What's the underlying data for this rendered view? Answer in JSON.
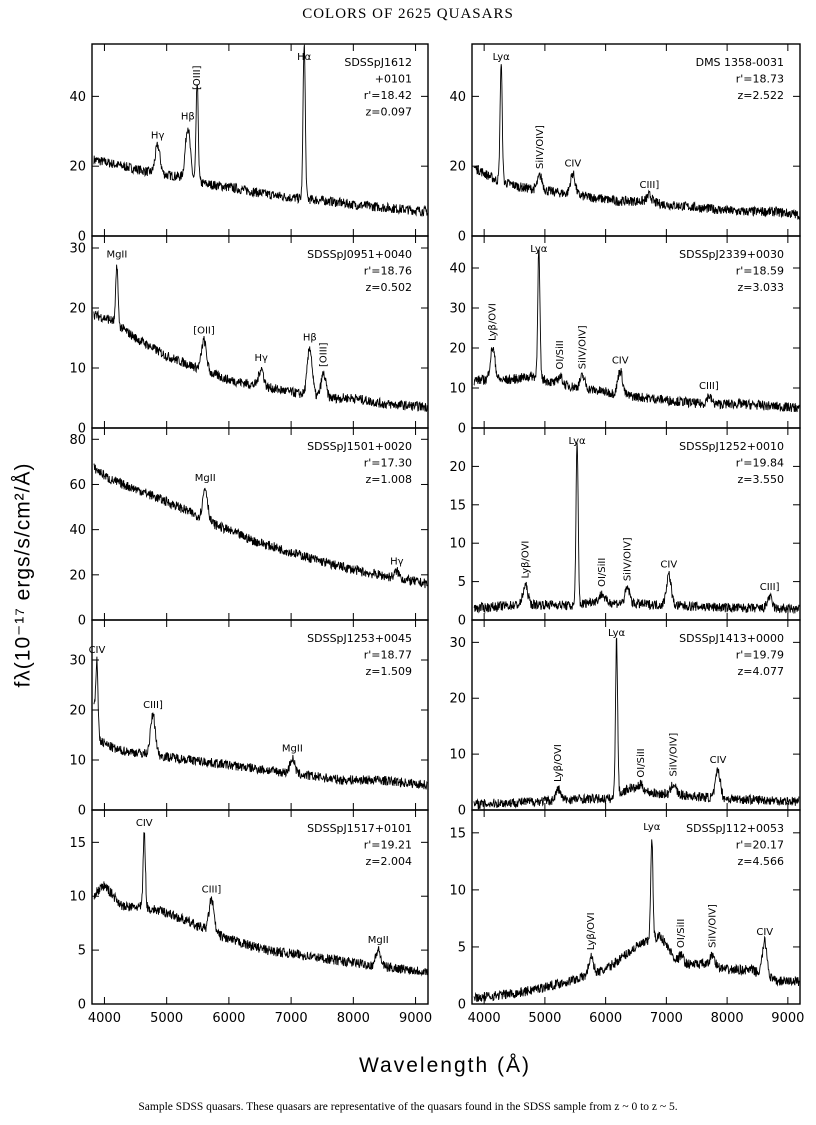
{
  "title": "COLORS OF 2625 QUASARS",
  "caption": "Sample SDSS quasars. These quasars are representative of the quasars found in the SDSS sample from z ~ 0 to z ~ 5.",
  "ylabel": "fλ(10⁻¹⁷ ergs/s/cm²/Å)",
  "xlabel": "Wavelength (Å)",
  "chart_data": [
    {
      "type": "line",
      "name": "SDSSpJ1612+0101",
      "info": [
        "SDSSpJ1612",
        "+0101",
        "r'=18.42",
        "z=0.097"
      ],
      "xlim": [
        3800,
        9200
      ],
      "ylim": [
        0,
        55
      ],
      "yticks": [
        0,
        20,
        40
      ],
      "xticks": [
        4000,
        5000,
        6000,
        7000,
        8000,
        9000
      ],
      "x": [
        3800,
        4300,
        4800,
        5200,
        5600,
        6000,
        6600,
        7000,
        7600,
        8000,
        8600,
        9200
      ],
      "y": [
        22,
        20,
        18,
        17,
        15,
        14,
        12,
        11,
        10,
        9,
        8,
        7
      ],
      "lines": [
        {
          "label": "Hγ",
          "x": 4855,
          "h": 8
        },
        {
          "label": "Hβ",
          "x": 5340,
          "h": 15
        },
        {
          "label": "[OIII]",
          "x": 5490,
          "h": 28
        },
        {
          "label": "Hα",
          "x": 7210,
          "h": 45
        }
      ]
    },
    {
      "type": "line",
      "name": "DMS 1358-0031",
      "info": [
        "DMS 1358-0031",
        "r'=18.73",
        "z=2.522"
      ],
      "xlim": [
        3800,
        9200
      ],
      "ylim": [
        0,
        55
      ],
      "yticks": [
        0,
        20,
        40
      ],
      "xticks": [
        4000,
        5000,
        6000,
        7000,
        8000,
        9000
      ],
      "x": [
        3800,
        4000,
        4200,
        4600,
        5000,
        5400,
        5800,
        6200,
        6600,
        7000,
        7600,
        8200,
        8800,
        9200
      ],
      "y": [
        20,
        18,
        16,
        14,
        13,
        12,
        11,
        10,
        10,
        9,
        8,
        7,
        7,
        6
      ],
      "lines": [
        {
          "label": "Lyα",
          "x": 4280,
          "h": 34
        },
        {
          "label": "SiIV/OIV]",
          "x": 4920,
          "h": 4
        },
        {
          "label": "CIV",
          "x": 5460,
          "h": 6
        },
        {
          "label": "CIII]",
          "x": 6720,
          "h": 2
        }
      ]
    },
    {
      "type": "line",
      "name": "SDSSpJ0951+0040",
      "info": [
        "SDSSpJ0951+0040",
        "r'=18.76",
        "z=0.502"
      ],
      "xlim": [
        3800,
        9200
      ],
      "ylim": [
        0,
        32
      ],
      "yticks": [
        0,
        10,
        20,
        30
      ],
      "xticks": [
        4000,
        5000,
        6000,
        7000,
        8000,
        9000
      ],
      "x": [
        3800,
        4100,
        4500,
        5000,
        5500,
        6000,
        6500,
        7000,
        7500,
        8000,
        8500,
        9200
      ],
      "y": [
        19,
        18,
        15,
        12,
        10,
        8,
        7,
        6,
        5,
        5,
        4,
        3.5
      ],
      "lines": [
        {
          "label": "MgII",
          "x": 4200,
          "h": 10
        },
        {
          "label": "[OII]",
          "x": 5600,
          "h": 5
        },
        {
          "label": "Hγ",
          "x": 6520,
          "h": 3
        },
        {
          "label": "Hβ",
          "x": 7300,
          "h": 8
        },
        {
          "label": "[OIII]",
          "x": 7520,
          "h": 4
        }
      ]
    },
    {
      "type": "line",
      "name": "SDSSpJ2339+0030",
      "info": [
        "SDSSpJ2339+0030",
        "r'=18.59",
        "z=3.033"
      ],
      "xlim": [
        3800,
        9200
      ],
      "ylim": [
        0,
        48
      ],
      "yticks": [
        0,
        10,
        20,
        30,
        40
      ],
      "xticks": [
        4000,
        5000,
        6000,
        7000,
        8000,
        9000
      ],
      "x": [
        3800,
        4400,
        4800,
        5200,
        5600,
        6000,
        6400,
        7000,
        7600,
        8200,
        9200
      ],
      "y": [
        12,
        12,
        13,
        11,
        10,
        9,
        8,
        7,
        6,
        6,
        5
      ],
      "lines": [
        {
          "label": "Lyβ/OVI",
          "x": 4140,
          "h": 8
        },
        {
          "label": "Lyα",
          "x": 4900,
          "h": 32
        },
        {
          "label": "OI/SiII",
          "x": 5250,
          "h": 2
        },
        {
          "label": "SiIV/OIV]",
          "x": 5620,
          "h": 3
        },
        {
          "label": "CIV",
          "x": 6240,
          "h": 6
        },
        {
          "label": "CIII]",
          "x": 7700,
          "h": 2
        }
      ]
    },
    {
      "type": "line",
      "name": "SDSSpJ1501+0020",
      "info": [
        "SDSSpJ1501+0020",
        "r'=17.30",
        "z=1.008"
      ],
      "xlim": [
        3800,
        9200
      ],
      "ylim": [
        0,
        85
      ],
      "yticks": [
        0,
        20,
        40,
        60,
        80
      ],
      "xticks": [
        4000,
        5000,
        6000,
        7000,
        8000,
        9000
      ],
      "x": [
        3800,
        4100,
        4600,
        5200,
        5800,
        6400,
        7000,
        7600,
        8200,
        8800,
        9200
      ],
      "y": [
        68,
        62,
        57,
        50,
        42,
        35,
        30,
        25,
        21,
        18,
        16
      ],
      "lines": [
        {
          "label": "MgII",
          "x": 5620,
          "h": 14
        },
        {
          "label": "Hγ",
          "x": 8700,
          "h": 3
        }
      ]
    },
    {
      "type": "line",
      "name": "SDSSpJ1252+0010",
      "info": [
        "SDSSpJ1252+0010",
        "r'=19.84",
        "z=3.550"
      ],
      "xlim": [
        3800,
        9200
      ],
      "ylim": [
        0,
        25
      ],
      "yticks": [
        0,
        5,
        10,
        15,
        20
      ],
      "xticks": [
        4000,
        5000,
        6000,
        7000,
        8000,
        9000
      ],
      "x": [
        3800,
        4600,
        5200,
        5500,
        5800,
        6200,
        6800,
        7400,
        8000,
        8600,
        9200
      ],
      "y": [
        1.5,
        2,
        2,
        1.8,
        2.5,
        2.2,
        2,
        1.8,
        1.6,
        1.5,
        1.4
      ],
      "lines": [
        {
          "label": "Lyβ/OVI",
          "x": 4680,
          "h": 2.5
        },
        {
          "label": "Lyα",
          "x": 5530,
          "h": 21
        },
        {
          "label": "OI/SiII",
          "x": 5940,
          "h": 1
        },
        {
          "label": "SiIV/OIV]",
          "x": 6360,
          "h": 2
        },
        {
          "label": "CIV",
          "x": 7040,
          "h": 4
        },
        {
          "label": "CIII]",
          "x": 8700,
          "h": 1.5
        }
      ]
    },
    {
      "type": "line",
      "name": "SDSSpJ1253+0045",
      "info": [
        "SDSSpJ1253+0045",
        "r'=18.77",
        "z=1.509"
      ],
      "xlim": [
        3800,
        9200
      ],
      "ylim": [
        0,
        38
      ],
      "yticks": [
        0,
        10,
        20,
        30
      ],
      "xticks": [
        4000,
        5000,
        6000,
        7000,
        8000,
        9000
      ],
      "x": [
        3800,
        3900,
        4200,
        4800,
        5400,
        6000,
        6600,
        7200,
        7800,
        8400,
        9200
      ],
      "y": [
        24,
        14,
        12,
        11,
        10,
        9,
        8,
        7,
        6,
        6,
        5
      ],
      "lines": [
        {
          "label": "CIV",
          "x": 3880,
          "h": 14
        },
        {
          "label": "CIII]",
          "x": 4780,
          "h": 8
        },
        {
          "label": "MgII",
          "x": 7020,
          "h": 3
        }
      ]
    },
    {
      "type": "line",
      "name": "SDSSpJ1413+0000",
      "info": [
        "SDSSpJ1413+0000",
        "r'=19.79",
        "z=4.077"
      ],
      "xlim": [
        3800,
        9200
      ],
      "ylim": [
        0,
        34
      ],
      "yticks": [
        0,
        10,
        20,
        30
      ],
      "xticks": [
        4000,
        5000,
        6000,
        7000,
        8000,
        9000
      ],
      "x": [
        3800,
        4800,
        5600,
        6100,
        6400,
        6800,
        7400,
        8000,
        8600,
        9200
      ],
      "y": [
        1,
        1.5,
        2,
        2,
        4,
        3,
        2.5,
        2,
        1.8,
        1.5
      ],
      "lines": [
        {
          "label": "Lyβ/OVI",
          "x": 5220,
          "h": 2
        },
        {
          "label": "Lyα",
          "x": 6180,
          "h": 28
        },
        {
          "label": "OI/SiII",
          "x": 6580,
          "h": 1
        },
        {
          "label": "SiIV/OIV]",
          "x": 7120,
          "h": 2
        },
        {
          "label": "CIV",
          "x": 7850,
          "h": 5
        }
      ]
    },
    {
      "type": "line",
      "name": "SDSSpJ1517+0101",
      "info": [
        "SDSSpJ1517+0101",
        "r'=19.21",
        "z=2.004"
      ],
      "xlim": [
        3800,
        9200
      ],
      "ylim": [
        0,
        18
      ],
      "yticks": [
        0,
        5,
        10,
        15
      ],
      "xticks": [
        4000,
        5000,
        6000,
        7000,
        8000,
        9000
      ],
      "x": [
        3800,
        4000,
        4300,
        4600,
        5000,
        5400,
        6000,
        6600,
        7200,
        7800,
        8400,
        9200
      ],
      "y": [
        10,
        11,
        9,
        9,
        8.5,
        7.5,
        6,
        5,
        4.5,
        4,
        3.5,
        3
      ],
      "lines": [
        {
          "label": "CIV",
          "x": 4640,
          "h": 7
        },
        {
          "label": "CIII]",
          "x": 5720,
          "h": 3
        },
        {
          "label": "MgII",
          "x": 8400,
          "h": 1.5
        }
      ]
    },
    {
      "type": "line",
      "name": "SDSSpJ112+0053",
      "info": [
        "SDSSpJ112+0053",
        "r'=20.17",
        "z=4.566"
      ],
      "xlim": [
        3800,
        9200
      ],
      "ylim": [
        0,
        17
      ],
      "yticks": [
        0,
        5,
        10,
        15
      ],
      "xticks": [
        4000,
        5000,
        6000,
        7000,
        8000,
        9000
      ],
      "x": [
        3800,
        4600,
        5400,
        6000,
        6500,
        6900,
        7200,
        7600,
        8000,
        8400,
        8800,
        9200
      ],
      "y": [
        0.5,
        1,
        2,
        3,
        5,
        6,
        3.5,
        3.5,
        3,
        3,
        2,
        2
      ],
      "lines": [
        {
          "label": "Lyβ/OVI",
          "x": 5760,
          "h": 1.5
        },
        {
          "label": "Lyα",
          "x": 6760,
          "h": 9
        },
        {
          "label": "OI/SiII",
          "x": 7240,
          "h": 0.8
        },
        {
          "label": "SiIV/OIV]",
          "x": 7760,
          "h": 1
        },
        {
          "label": "CIV",
          "x": 8620,
          "h": 3
        }
      ]
    }
  ]
}
